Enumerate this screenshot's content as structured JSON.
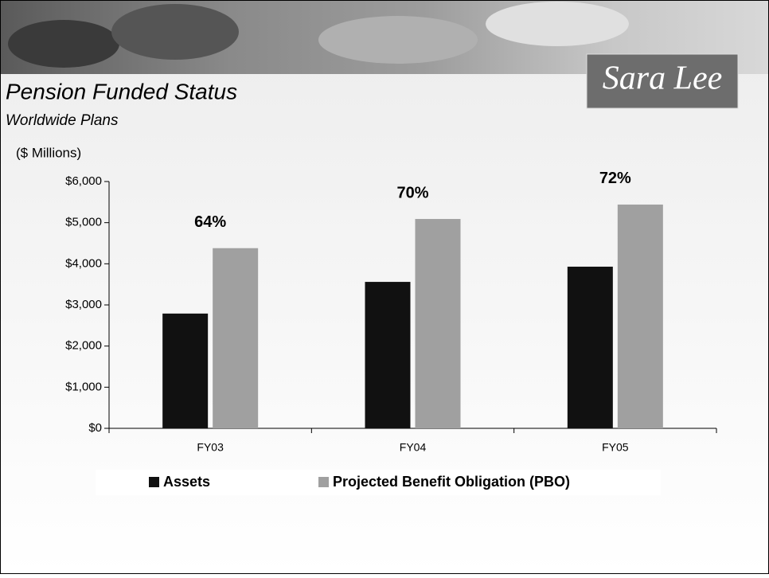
{
  "logo": "Sara Lee",
  "chart_data": {
    "type": "bar",
    "title": "Pension Funded Status",
    "subtitle": "Worldwide Plans",
    "y_label": "($ Millions)",
    "categories": [
      "FY03",
      "FY04",
      "FY05"
    ],
    "series": [
      {
        "name": "Assets",
        "color": "#111111",
        "values": [
          2790,
          3560,
          3930
        ]
      },
      {
        "name": "Projected Benefit Obligation (PBO)",
        "color": "#a0a0a0",
        "values": [
          4380,
          5090,
          5440
        ]
      }
    ],
    "funded_ratio": {
      "values": [
        64,
        70,
        72
      ],
      "value_labels": [
        "64%",
        "70%",
        "72%"
      ]
    },
    "ylim": [
      0,
      6000
    ],
    "yticks": [
      {
        "value": 0,
        "label": "$0"
      },
      {
        "value": 1000,
        "label": "$1,000"
      },
      {
        "value": 2000,
        "label": "$2,000"
      },
      {
        "value": 3000,
        "label": "$3,000"
      },
      {
        "value": 4000,
        "label": "$4,000"
      },
      {
        "value": 5000,
        "label": "$5,000"
      },
      {
        "value": 6000,
        "label": "$6,000"
      }
    ],
    "legend": "bottom"
  }
}
